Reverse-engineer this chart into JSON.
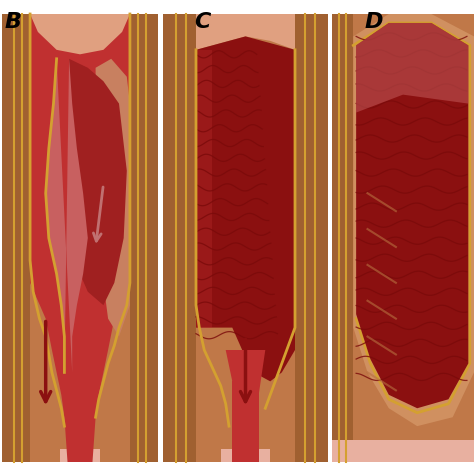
{
  "bg_color": "#ffffff",
  "labels": [
    "B",
    "C",
    "D"
  ],
  "wall_brown": "#c07848",
  "wall_brown_dark": "#a06030",
  "wall_brown_light": "#d09060",
  "wall_brown_mid": "#b87040",
  "gold": "#d4a030",
  "gold_light": "#e8c060",
  "lumen_red": "#a02020",
  "lumen_med": "#c03030",
  "lumen_light": "#c86060",
  "lumen_dark": "#701010",
  "flesh_light": "#e0a080",
  "flesh_mid": "#c88060",
  "pink_base": "#e8b0a0",
  "thrombus_dark": "#7a0a0a",
  "thrombus_med": "#8b1010",
  "arrow_dark": "#8b1010",
  "arrow_light": "#c07070",
  "white": "#ffffff"
}
